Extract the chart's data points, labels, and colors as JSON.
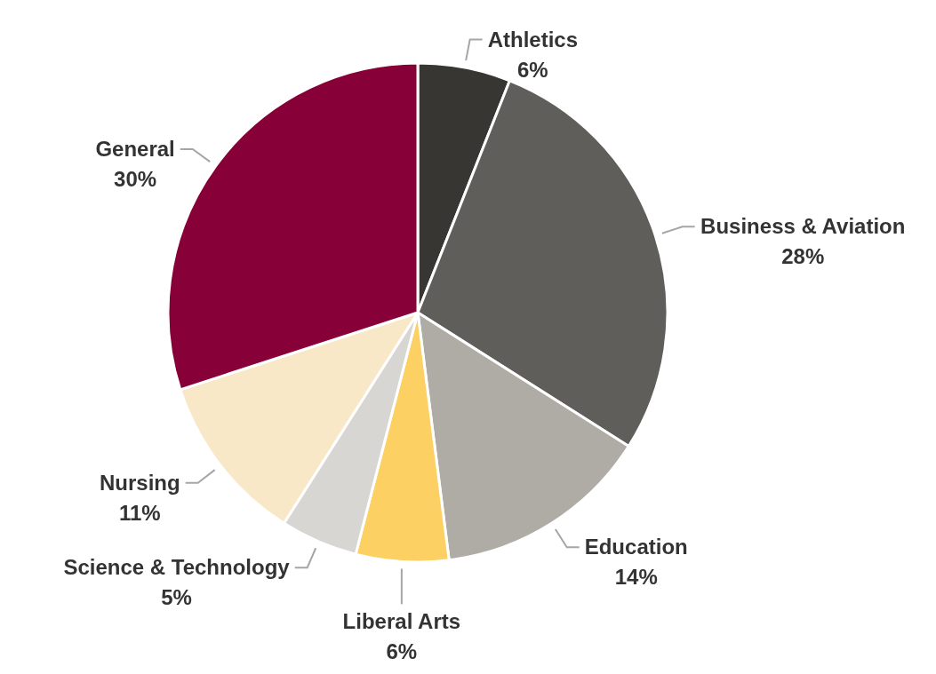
{
  "chart_data": {
    "type": "pie",
    "categories": [
      "Athletics",
      "Business & Aviation",
      "Education",
      "Liberal Arts",
      "Science & Technology",
      "Nursing",
      "General"
    ],
    "values": [
      6,
      28,
      14,
      6,
      5,
      11,
      30
    ],
    "value_labels": [
      "6%",
      "28%",
      "14%",
      "6%",
      "5%",
      "11%",
      "30%"
    ],
    "colors": [
      "#383632",
      "#605e5a",
      "#afaca6",
      "#fcd062",
      "#d7d6d2",
      "#f9e8c8",
      "#870038"
    ],
    "legend": false
  }
}
